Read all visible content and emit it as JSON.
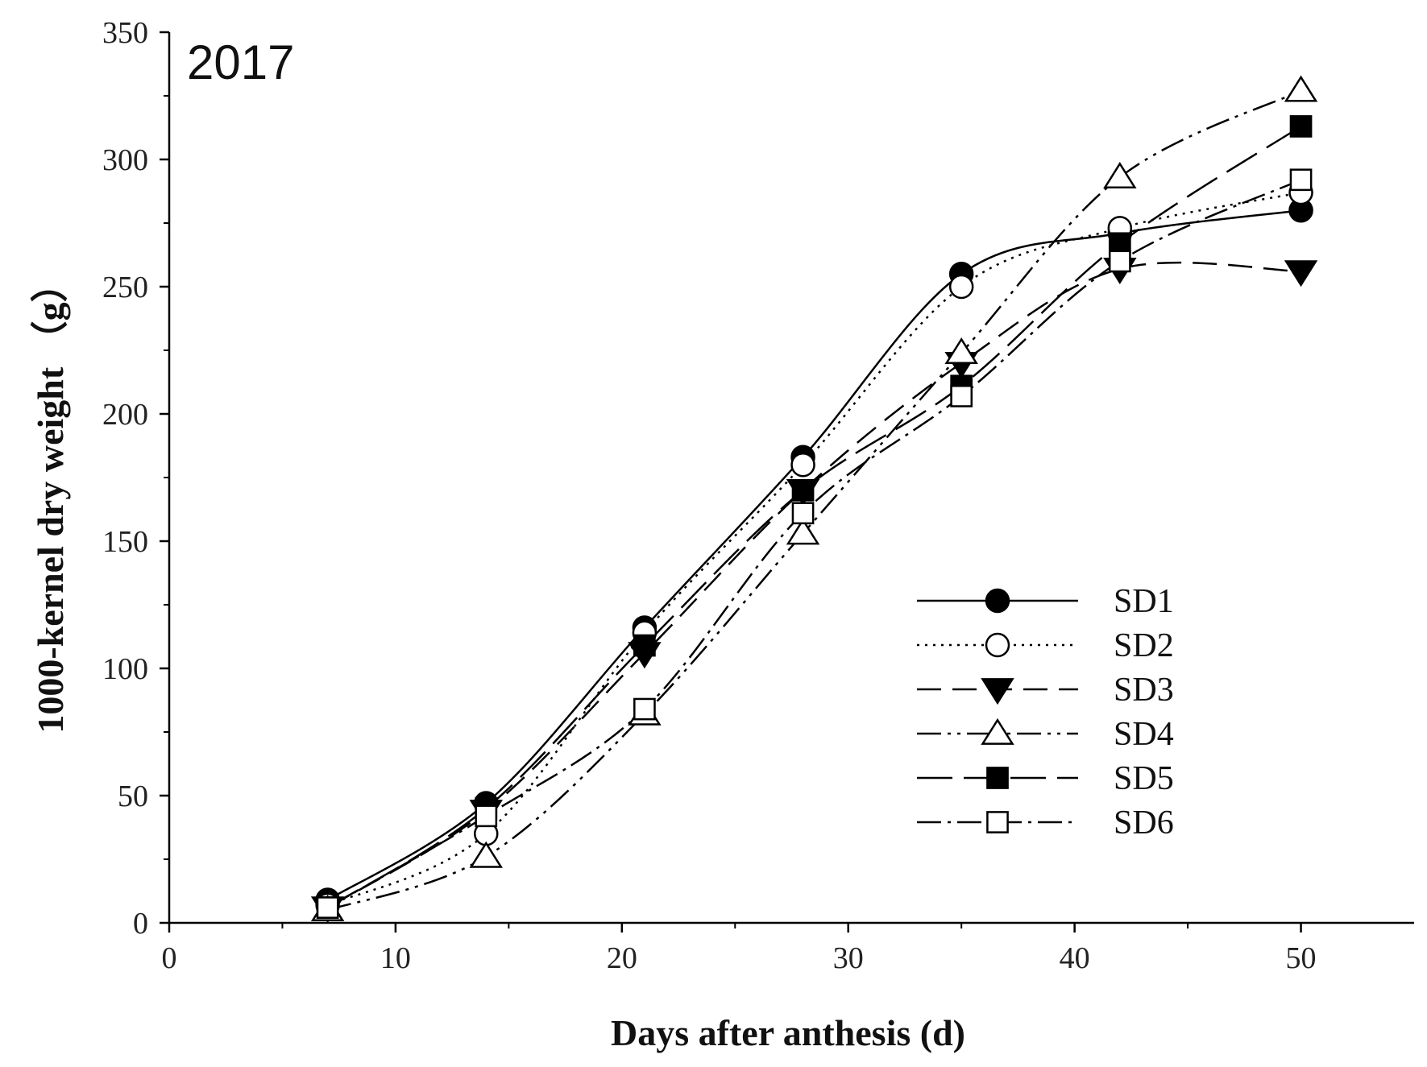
{
  "chart_data": {
    "type": "line",
    "panel_label": "2017",
    "xlabel": "Days after anthesis (d)",
    "ylabel": "1000-kernel dry weight （g）",
    "xlim": [
      0,
      55
    ],
    "ylim": [
      0,
      350
    ],
    "xticks": [
      0,
      10,
      20,
      30,
      40,
      50
    ],
    "yticks": [
      0,
      50,
      100,
      150,
      200,
      250,
      300,
      350
    ],
    "legend_position": "bottom-right",
    "x": [
      7,
      14,
      21,
      28,
      35,
      42,
      50
    ],
    "series": [
      {
        "name": "SD1",
        "marker": "circle",
        "fill": "#000000",
        "dash": "",
        "values": [
          9,
          47,
          116,
          183,
          255,
          271,
          280
        ]
      },
      {
        "name": "SD2",
        "marker": "circle",
        "fill": "#ffffff",
        "dash": "3,7",
        "values": [
          7,
          35,
          114,
          180,
          250,
          273,
          287
        ]
      },
      {
        "name": "SD3",
        "marker": "triangle-down",
        "fill": "#000000",
        "dash": "30,14",
        "values": [
          6,
          44,
          106,
          170,
          220,
          257,
          256
        ]
      },
      {
        "name": "SD4",
        "marker": "triangle-up",
        "fill": "#ffffff",
        "dash": "30,8,4,8,4,8",
        "values": [
          5,
          26,
          82,
          153,
          224,
          293,
          327
        ]
      },
      {
        "name": "SD5",
        "marker": "square",
        "fill": "#000000",
        "dash": "44,14",
        "values": [
          6,
          45,
          109,
          170,
          211,
          267,
          313
        ]
      },
      {
        "name": "SD6",
        "marker": "square",
        "fill": "#ffffff",
        "dash": "30,8,4,8",
        "values": [
          6,
          42,
          84,
          161,
          207,
          260,
          292
        ]
      }
    ]
  }
}
